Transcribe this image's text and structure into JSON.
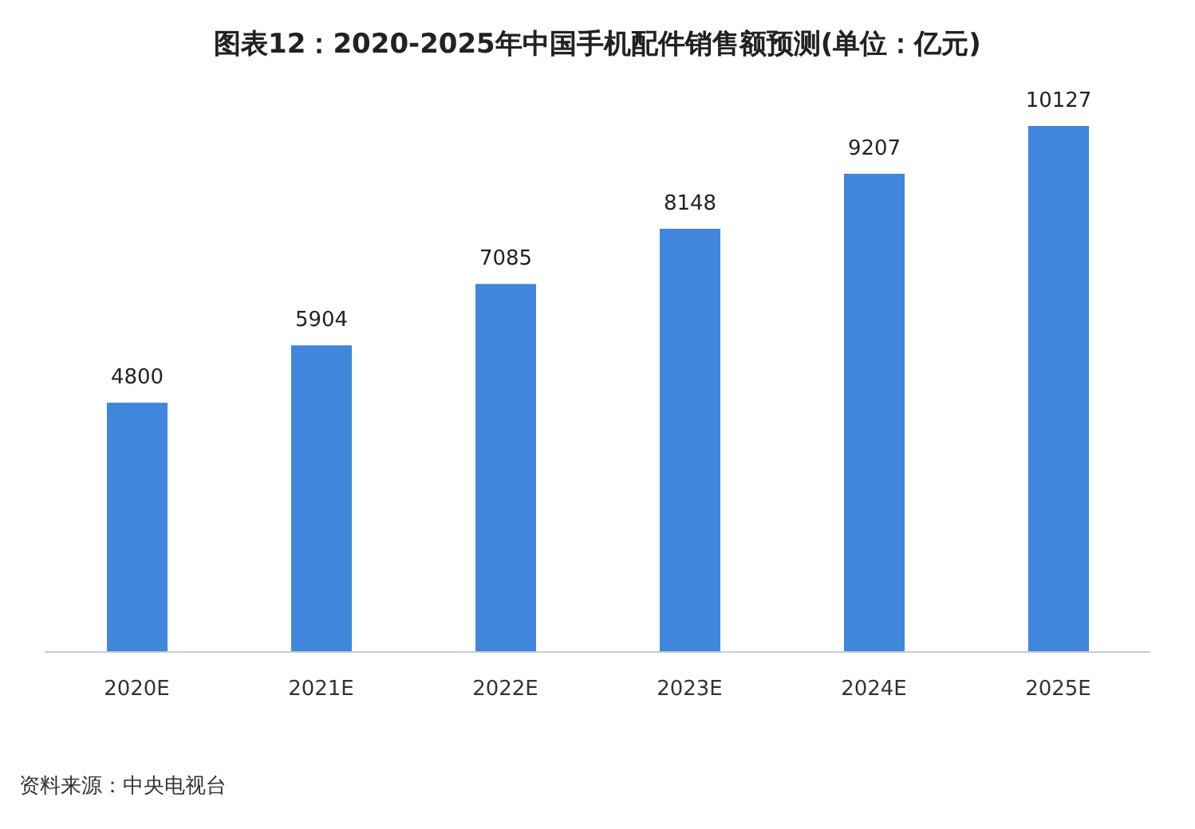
{
  "chart_data": {
    "type": "bar",
    "title": "图表12：2020-2025年中国手机配件销售额预测(单位：亿元)",
    "categories": [
      "2020E",
      "2021E",
      "2022E",
      "2023E",
      "2024E",
      "2025E"
    ],
    "values": [
      4800,
      5904,
      7085,
      8148,
      9207,
      10127
    ],
    "color": "#3f86dc",
    "data_labels": true,
    "grid": false,
    "legend": false,
    "annotations": [
      "资料来源：中央电视台"
    ]
  }
}
